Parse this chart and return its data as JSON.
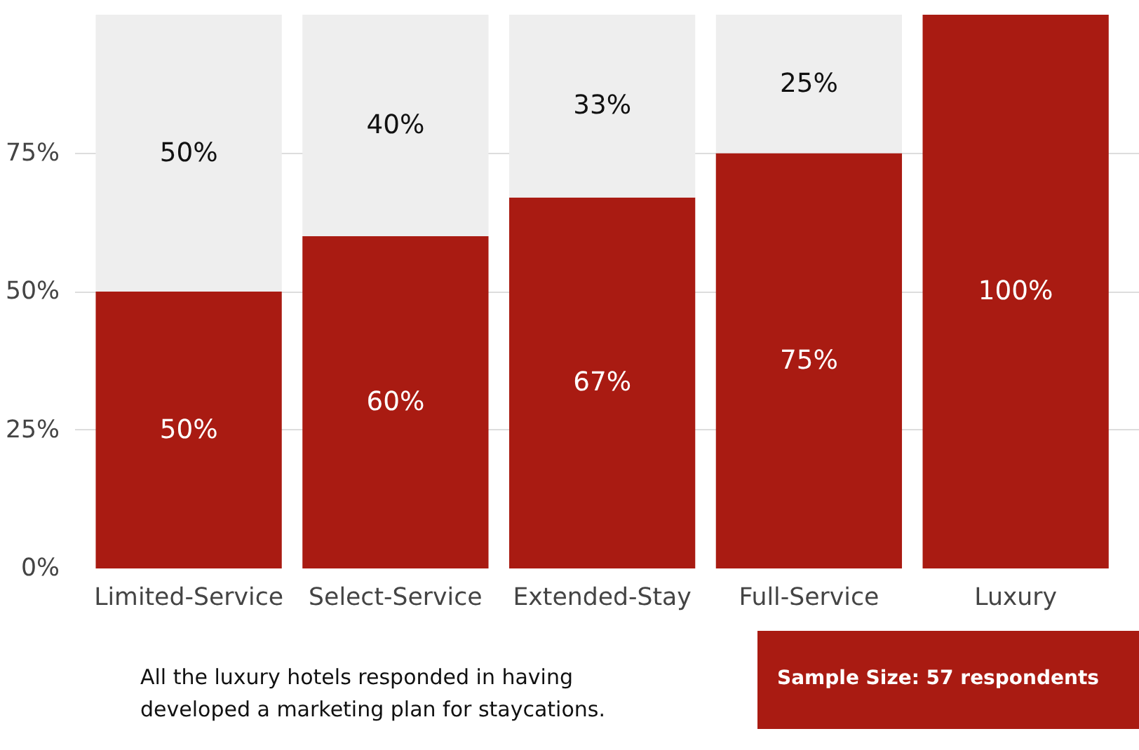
{
  "chart_data": {
    "type": "bar",
    "stacked": true,
    "categories": [
      "Limited-Service",
      "Select-Service",
      "Extended-Stay",
      "Full-Service",
      "Luxury"
    ],
    "series": [
      {
        "color": "#a91b12",
        "values": [
          50,
          60,
          67,
          75,
          100
        ],
        "value_labels": [
          "50%",
          "60%",
          "67%",
          "75%",
          "100%"
        ]
      },
      {
        "color": "#eeeeee",
        "values": [
          50,
          40,
          33,
          25,
          0
        ],
        "value_labels": [
          "50%",
          "40%",
          "33%",
          "25%",
          null
        ]
      }
    ],
    "ylim": [
      0,
      100
    ],
    "yticks": [
      {
        "value": 0,
        "label": "0%"
      },
      {
        "value": 25,
        "label": "25%"
      },
      {
        "value": 50,
        "label": "50%"
      },
      {
        "value": 75,
        "label": "75%"
      }
    ],
    "grid": "y",
    "annotations": [
      "All the luxury hotels responded in having\ndeveloped a marketing plan for staycations.",
      "Sample Size: 57 respondents"
    ]
  }
}
